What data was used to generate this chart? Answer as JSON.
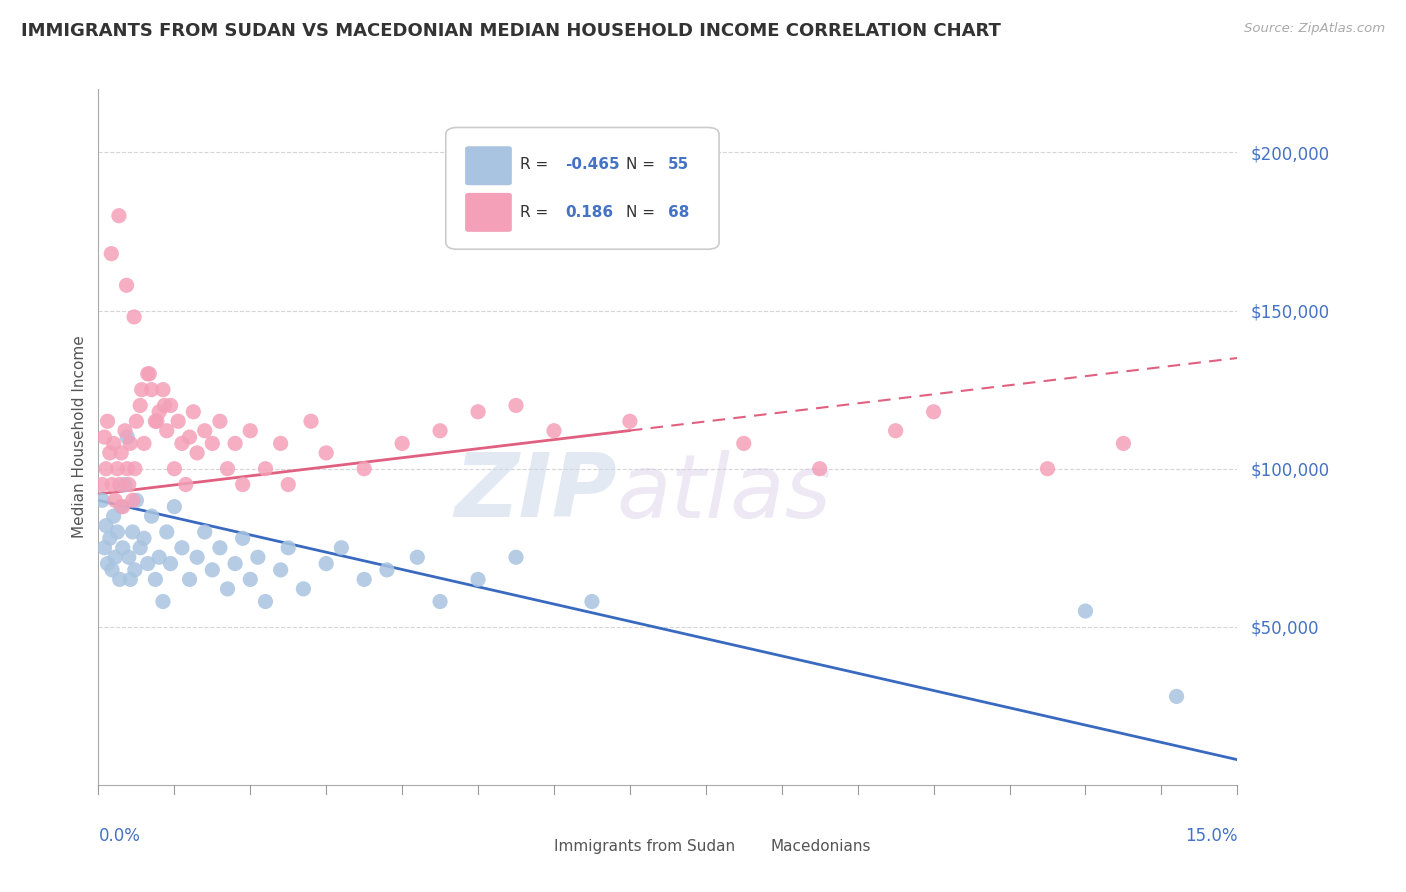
{
  "title": "IMMIGRANTS FROM SUDAN VS MACEDONIAN MEDIAN HOUSEHOLD INCOME CORRELATION CHART",
  "source": "Source: ZipAtlas.com",
  "ylabel": "Median Household Income",
  "x_min": 0.0,
  "x_max": 15.0,
  "y_min": 0,
  "y_max": 220000,
  "y_ticks": [
    50000,
    100000,
    150000,
    200000
  ],
  "y_tick_labels": [
    "$50,000",
    "$100,000",
    "$150,000",
    "$200,000"
  ],
  "series1_name": "Immigrants from Sudan",
  "series2_name": "Macedonians",
  "color_blue": "#a8c4e0",
  "color_pink": "#f4a0b8",
  "color_blue_line": "#3a6abf",
  "color_pink_line": "#e06080",
  "watermark_zip": "ZIP",
  "watermark_atlas": "atlas",
  "background_color": "#ffffff",
  "grid_color": "#cccccc",
  "axis_label_color": "#4472c4",
  "blue_scatter_x": [
    0.05,
    0.08,
    0.1,
    0.12,
    0.15,
    0.18,
    0.2,
    0.22,
    0.25,
    0.28,
    0.3,
    0.32,
    0.35,
    0.38,
    0.4,
    0.42,
    0.45,
    0.48,
    0.5,
    0.55,
    0.6,
    0.65,
    0.7,
    0.75,
    0.8,
    0.85,
    0.9,
    0.95,
    1.0,
    1.1,
    1.2,
    1.3,
    1.4,
    1.5,
    1.6,
    1.7,
    1.8,
    1.9,
    2.0,
    2.1,
    2.2,
    2.4,
    2.5,
    2.7,
    3.0,
    3.2,
    3.5,
    3.8,
    4.2,
    4.5,
    5.0,
    5.5,
    6.5,
    13.0,
    14.2
  ],
  "blue_scatter_y": [
    90000,
    75000,
    82000,
    70000,
    78000,
    68000,
    85000,
    72000,
    80000,
    65000,
    88000,
    75000,
    95000,
    110000,
    72000,
    65000,
    80000,
    68000,
    90000,
    75000,
    78000,
    70000,
    85000,
    65000,
    72000,
    58000,
    80000,
    70000,
    88000,
    75000,
    65000,
    72000,
    80000,
    68000,
    75000,
    62000,
    70000,
    78000,
    65000,
    72000,
    58000,
    68000,
    75000,
    62000,
    70000,
    75000,
    65000,
    68000,
    72000,
    58000,
    65000,
    72000,
    58000,
    55000,
    28000
  ],
  "pink_scatter_x": [
    0.05,
    0.08,
    0.1,
    0.12,
    0.15,
    0.18,
    0.2,
    0.22,
    0.25,
    0.28,
    0.3,
    0.32,
    0.35,
    0.38,
    0.4,
    0.42,
    0.45,
    0.48,
    0.5,
    0.55,
    0.6,
    0.65,
    0.7,
    0.75,
    0.8,
    0.85,
    0.9,
    0.95,
    1.0,
    1.05,
    1.1,
    1.15,
    1.2,
    1.25,
    1.3,
    1.4,
    1.5,
    1.6,
    1.7,
    1.8,
    1.9,
    2.0,
    2.2,
    2.4,
    2.5,
    2.8,
    3.0,
    3.5,
    4.0,
    4.5,
    5.0,
    5.5,
    6.0,
    7.0,
    8.5,
    9.5,
    10.5,
    11.0,
    12.5,
    13.5,
    0.17,
    0.27,
    0.37,
    0.47,
    0.57,
    0.67,
    0.77,
    0.87
  ],
  "pink_scatter_y": [
    95000,
    110000,
    100000,
    115000,
    105000,
    95000,
    108000,
    90000,
    100000,
    95000,
    105000,
    88000,
    112000,
    100000,
    95000,
    108000,
    90000,
    100000,
    115000,
    120000,
    108000,
    130000,
    125000,
    115000,
    118000,
    125000,
    112000,
    120000,
    100000,
    115000,
    108000,
    95000,
    110000,
    118000,
    105000,
    112000,
    108000,
    115000,
    100000,
    108000,
    95000,
    112000,
    100000,
    108000,
    95000,
    115000,
    105000,
    100000,
    108000,
    112000,
    118000,
    120000,
    112000,
    115000,
    108000,
    100000,
    112000,
    118000,
    100000,
    108000,
    168000,
    180000,
    158000,
    148000,
    125000,
    130000,
    115000,
    120000
  ]
}
